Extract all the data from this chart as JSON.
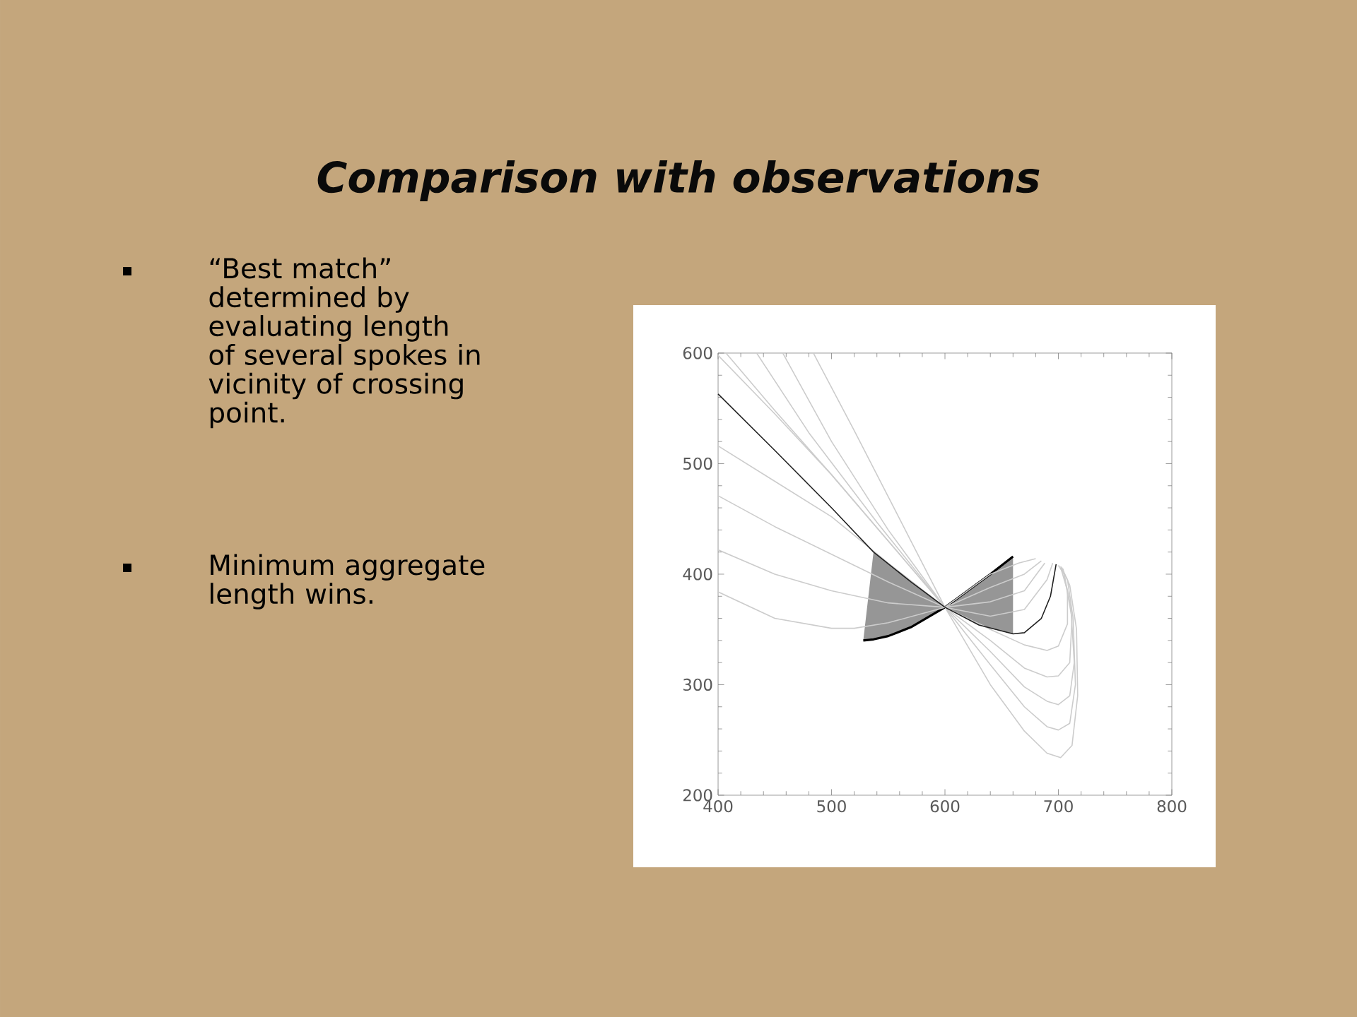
{
  "chart_data": {
    "type": "line",
    "title": "Comparison with observations",
    "annotations": [
      "“Best match” determined by evaluating length of several spokes in vicinity of crossing point.",
      "Minimum aggregate length wins."
    ],
    "xlim": [
      400,
      800
    ],
    "ylim": [
      200,
      600
    ],
    "xticks": [
      400,
      500,
      600,
      700,
      800
    ],
    "yticks": [
      200,
      300,
      400,
      500,
      600
    ],
    "series": [
      {
        "color": "#cccccc",
        "x": [
          400,
          450,
          500,
          520,
          550,
          600,
          640,
          665,
          680
        ],
        "values": [
          384,
          360,
          351,
          351,
          356,
          370,
          400,
          410,
          414
        ]
      },
      {
        "color": "#cccccc",
        "x": [
          400,
          450,
          500,
          550,
          600,
          640,
          670,
          685
        ],
        "values": [
          422,
          400,
          385,
          374,
          370,
          388,
          400,
          412
        ]
      },
      {
        "color": "#cccccc",
        "x": [
          400,
          450,
          500,
          550,
          600,
          640,
          670,
          688
        ],
        "values": [
          471,
          443,
          418,
          393,
          370,
          375,
          385,
          410
        ]
      },
      {
        "color": "#cccccc",
        "x": [
          400,
          450,
          500,
          550,
          600,
          640,
          670,
          690,
          695
        ],
        "values": [
          516,
          484,
          452,
          410,
          370,
          362,
          368,
          395,
          410
        ]
      },
      {
        "color": "#cccccc",
        "x": [
          400,
          450,
          500,
          550,
          600,
          640,
          670,
          690,
          700,
          708,
          708,
          702
        ],
        "values": [
          598,
          545,
          490,
          430,
          370,
          350,
          336,
          331,
          335,
          355,
          385,
          406
        ]
      },
      {
        "color": "#cccccc",
        "x": [
          407,
          450,
          500,
          550,
          600,
          640,
          670,
          690,
          700,
          710,
          712,
          705,
          700
        ],
        "values": [
          600,
          548,
          490,
          430,
          370,
          340,
          315,
          307,
          308,
          320,
          360,
          400,
          408
        ]
      },
      {
        "color": "#cccccc",
        "x": [
          434,
          480,
          540,
          600,
          640,
          670,
          690,
          700,
          710,
          714,
          711,
          704
        ],
        "values": [
          600,
          528,
          447,
          370,
          330,
          298,
          285,
          282,
          290,
          320,
          370,
          405
        ]
      },
      {
        "color": "#cccccc",
        "x": [
          457,
          500,
          550,
          600,
          640,
          670,
          690,
          700,
          710,
          715,
          713,
          708,
          702
        ],
        "values": [
          600,
          520,
          440,
          370,
          318,
          280,
          262,
          259,
          265,
          300,
          360,
          395,
          407
        ]
      },
      {
        "color": "#cccccc",
        "x": [
          484,
          520,
          560,
          600,
          640,
          670,
          690,
          702,
          712,
          717,
          716,
          710,
          703
        ],
        "values": [
          600,
          530,
          450,
          370,
          300,
          258,
          238,
          234,
          245,
          290,
          350,
          390,
          406
        ]
      },
      {
        "color": "#202020",
        "x": [
          400,
          450,
          500,
          537,
          570,
          600,
          630,
          660,
          670,
          685,
          693,
          698
        ],
        "values": [
          563,
          512,
          460,
          420,
          393,
          370,
          354,
          346,
          347,
          360,
          380,
          409
        ]
      },
      {
        "color": "#000000",
        "x": [
          528,
          537,
          550,
          570,
          600,
          620,
          640,
          660
        ],
        "values": [
          340,
          341,
          344,
          352,
          370,
          385,
          400,
          416
        ],
        "lower": [
          340,
          341,
          344,
          352,
          370,
          360,
          351,
          346
        ],
        "upper": [
          340,
          420,
          410,
          393,
          370,
          385,
          400,
          416
        ]
      }
    ]
  }
}
